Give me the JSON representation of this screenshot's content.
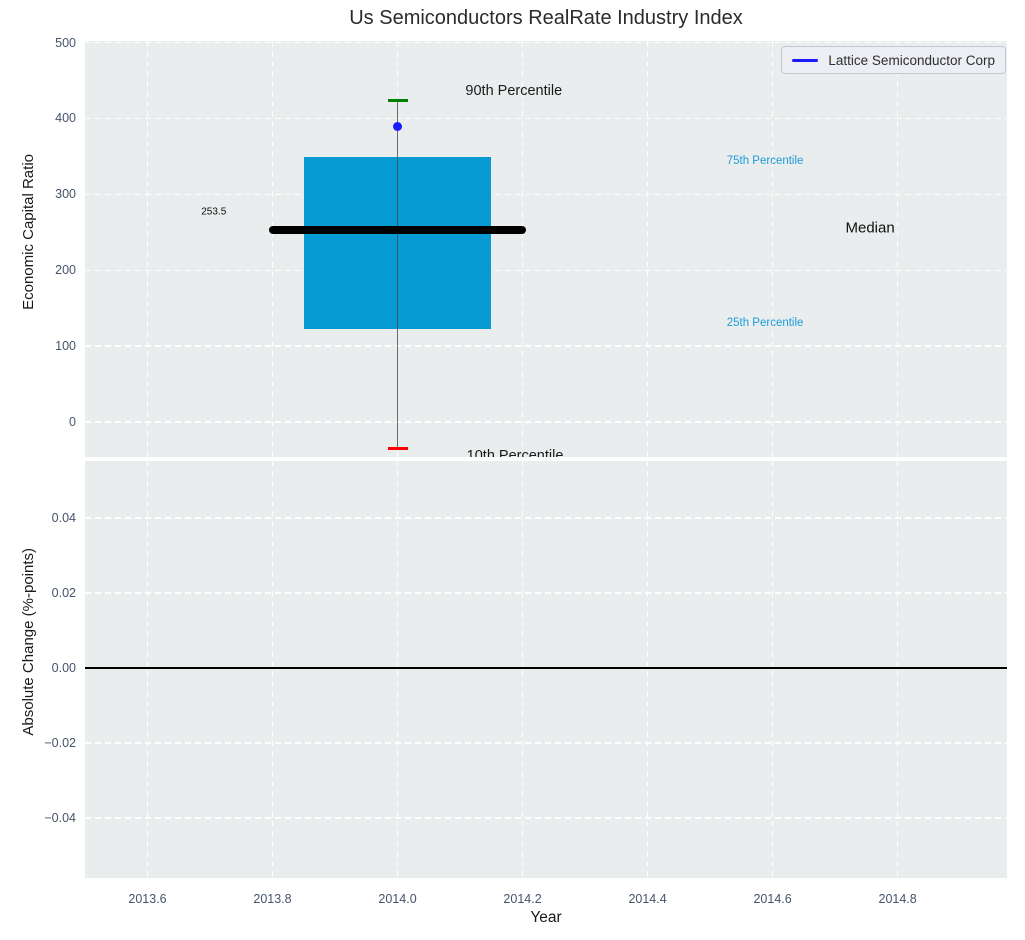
{
  "colors": {
    "box_fill": "#069bd2",
    "median_line": "#000000",
    "whisker": "rgba(70,70,70,0.8)",
    "p90_cap": "#008000",
    "p10_cap": "#fe0000",
    "company_marker": "#1a1aff",
    "legend_line": "#1a1aff",
    "annotation_blue": "#1e9cd7",
    "zero_line": "#000000",
    "axes_background": "#e9edee",
    "grid": "#ffffff",
    "tick_label": "#45536a"
  },
  "xticks": {
    "values": [
      2013.6,
      2013.8,
      2014.0,
      2014.2,
      2014.4,
      2014.6,
      2014.8
    ],
    "labels": [
      "2013.6",
      "2013.8",
      "2014.0",
      "2014.2",
      "2014.4",
      "2014.6",
      "2014.8"
    ]
  },
  "chart_data": [
    {
      "type": "box",
      "title": "Us Semiconductors RealRate Industry Index",
      "ylabel": "Economic Capital Ratio",
      "xlabel": "",
      "legend": {
        "label": "Lattice Semiconductor Corp",
        "position": "upper right"
      },
      "grid": true,
      "xlim": [
        2013.5,
        2014.975
      ],
      "ylim": [
        -46,
        502
      ],
      "yticks": [
        500,
        400,
        300,
        200,
        100,
        0
      ],
      "ytick_labels": [
        "500",
        "400",
        "300",
        "200",
        "100",
        "0"
      ],
      "series": {
        "x": 2014.0,
        "p90": 424,
        "p75": 349,
        "median": 253.5,
        "p25": 122,
        "p10": -35,
        "company": "Lattice Semiconductor Corp",
        "company_value": 390
      },
      "box_width": 0.3,
      "median_line_width": 0.41,
      "cap_width": 0.032,
      "annotations": [
        {
          "label": "90th Percentile",
          "x": 2014.186,
          "y": 436,
          "color": "#1a1a1a",
          "size": 14.5
        },
        {
          "label": "75th Percentile",
          "x": 2014.588,
          "y": 344,
          "color": "#1e9cd7",
          "size": 11.5
        },
        {
          "label": "Median",
          "x": 2014.756,
          "y": 256,
          "color": "#111111",
          "size": 15
        },
        {
          "label": "25th Percentile",
          "x": 2014.588,
          "y": 130,
          "color": "#1e9cd7",
          "size": 11.5
        },
        {
          "label": "10th Percentile",
          "x": 2014.188,
          "y": -45,
          "color": "#1a1a1a",
          "size": 14.5
        },
        {
          "label": "253.5",
          "x": 2013.706,
          "y": 277,
          "color": "#111111",
          "size": 10
        }
      ]
    },
    {
      "type": "line",
      "title": "",
      "ylabel": "Absolute Change (%-points)",
      "xlabel": "Year",
      "grid": true,
      "xlim": [
        2013.5,
        2014.975
      ],
      "ylim": [
        -0.056,
        0.0552
      ],
      "yticks": [
        0.04,
        0.02,
        0.0,
        -0.02,
        -0.04
      ],
      "ytick_labels": [
        "0.04",
        "0.02",
        "0.00",
        "−0.02",
        "−0.04"
      ],
      "zero_line_y": 0.0,
      "series": []
    }
  ]
}
